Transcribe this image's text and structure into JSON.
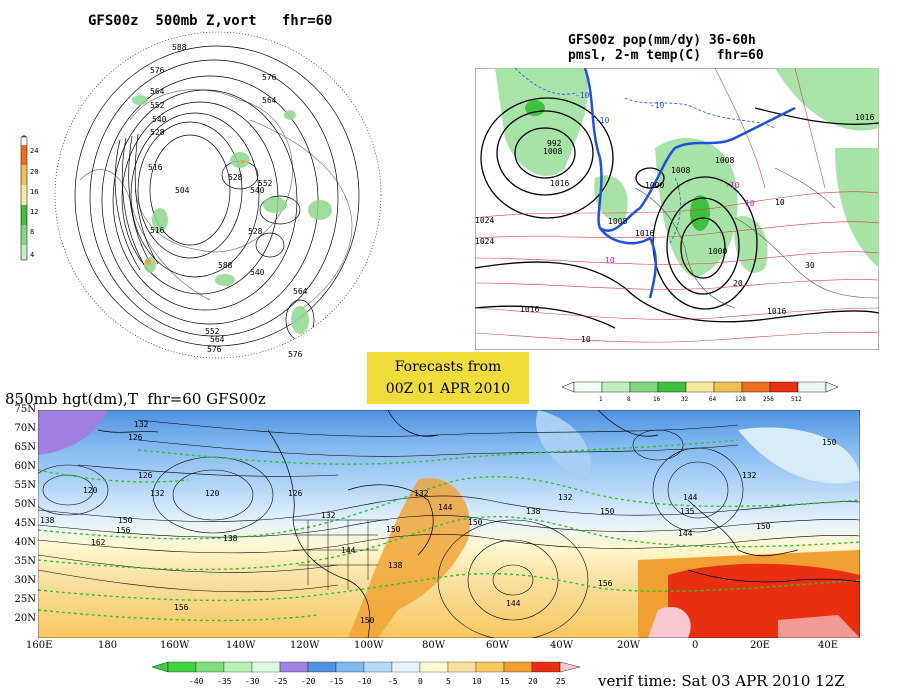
{
  "panel_polar": {
    "title": "GFS00z  500mb Z,vort   fhr=60",
    "colorbar_ticks": [
      "24",
      "20",
      "16",
      "12",
      "8",
      "4"
    ],
    "colorbar_colors": [
      "#f07020",
      "#f0c050",
      "#f8e8a0",
      "#40c040",
      "#80d880",
      "#c0f0c0"
    ],
    "contour_labels": [
      "588",
      "576",
      "564",
      "552",
      "540",
      "528",
      "516",
      "504",
      "528",
      "540",
      "552",
      "564",
      "576",
      "516",
      "528",
      "540",
      "552",
      "564",
      "576",
      "588",
      "576",
      "564"
    ]
  },
  "panel_regional": {
    "title_line1": "GFS00z pop(mm/dy) 36-60h",
    "title_line2": "pmsl, 2-m temp(C)  fhr=60",
    "pressure_labels": [
      "1016",
      "1008",
      "1024",
      "1016",
      "1008",
      "1000",
      "1008",
      "1000",
      "992",
      "1008",
      "1016",
      "1016",
      "1016",
      "1024"
    ],
    "temp_labels": [
      "-10",
      "-10",
      "-10",
      "10",
      "10",
      "-10",
      "30",
      "10",
      "20",
      "10"
    ],
    "colorbar_ticks": [
      "1",
      "8",
      "16",
      "32",
      "64",
      "128",
      "256",
      "512"
    ],
    "colorbar_colors": [
      "#f0fff0",
      "#c0f0c0",
      "#80d880",
      "#40c040",
      "#f8e8a0",
      "#f0c050",
      "#f07020",
      "#e83010",
      "#e8f8f8"
    ]
  },
  "banner": {
    "line1": "Forecasts from",
    "line2": "00Z 01 APR 2010"
  },
  "panel_850": {
    "title": "850mb hgt(dm),T  fhr=60 GFS00z",
    "lat_labels": [
      "75N",
      "70N",
      "65N",
      "60N",
      "55N",
      "50N",
      "45N",
      "40N",
      "35N",
      "30N",
      "25N",
      "20N"
    ],
    "lon_labels": [
      "160E",
      "180",
      "160W",
      "140W",
      "120W",
      "100W",
      "80W",
      "60W",
      "40W",
      "20W",
      "0",
      "20E",
      "40E"
    ],
    "height_labels": [
      "132",
      "126",
      "126",
      "120",
      "132",
      "120",
      "126",
      "132",
      "132",
      "144",
      "150",
      "132",
      "138",
      "144",
      "150",
      "150",
      "156",
      "144",
      "156",
      "150",
      "138",
      "135",
      "144",
      "150",
      "138",
      "156",
      "162",
      "150",
      "150",
      "132",
      "138",
      "144"
    ],
    "colorbar_ticks": [
      "-40",
      "-35",
      "-30",
      "-25",
      "-20",
      "-15",
      "-10",
      "-5",
      "0",
      "5",
      "10",
      "15",
      "20",
      "25"
    ],
    "colorbar_colors": [
      "#40d040",
      "#80e080",
      "#b8f0b8",
      "#e0f8e0",
      "#a080e0",
      "#5090e0",
      "#80b8f0",
      "#b8d8f8",
      "#e8f4fc",
      "#fff8d0",
      "#f8e0a0",
      "#f8c860",
      "#f0a030",
      "#e83010",
      "#f8c8d0"
    ]
  },
  "verif": {
    "text": "verif time: Sat 03 APR 2010 12Z"
  }
}
